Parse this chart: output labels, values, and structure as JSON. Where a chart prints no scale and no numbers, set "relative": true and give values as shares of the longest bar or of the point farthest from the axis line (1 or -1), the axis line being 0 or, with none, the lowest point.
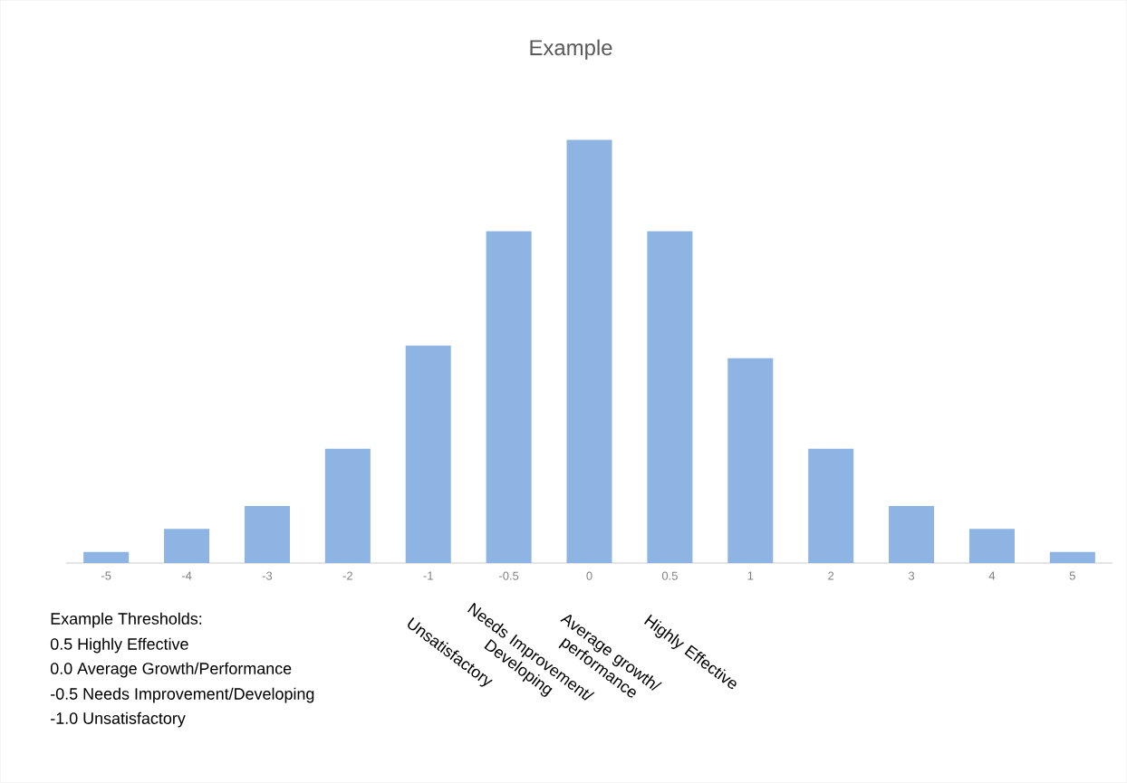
{
  "chart_data": {
    "type": "bar",
    "title": "Example",
    "relative": true,
    "color": "#8db4e2",
    "categories": [
      "-5",
      "-4",
      "-3",
      "-2",
      "-1",
      "-0.5",
      "0",
      "0.5",
      "1",
      "2",
      "3",
      "4",
      "5"
    ],
    "values": [
      0.026,
      0.081,
      0.135,
      0.27,
      0.514,
      0.784,
      1,
      0.784,
      0.484,
      0.27,
      0.135,
      0.081,
      0.026
    ],
    "annotations": [
      "Example Thresholds:",
      "0.5 Highly Effective",
      "0.0 Average Growth/Performance",
      "-0.5 Needs Improvement/Developing",
      "-1.0 Unsatisfactory",
      "Unsatisfactory",
      "Needs Improvement/ Developing",
      "Average growth/ performance",
      "Highly Effective"
    ]
  }
}
